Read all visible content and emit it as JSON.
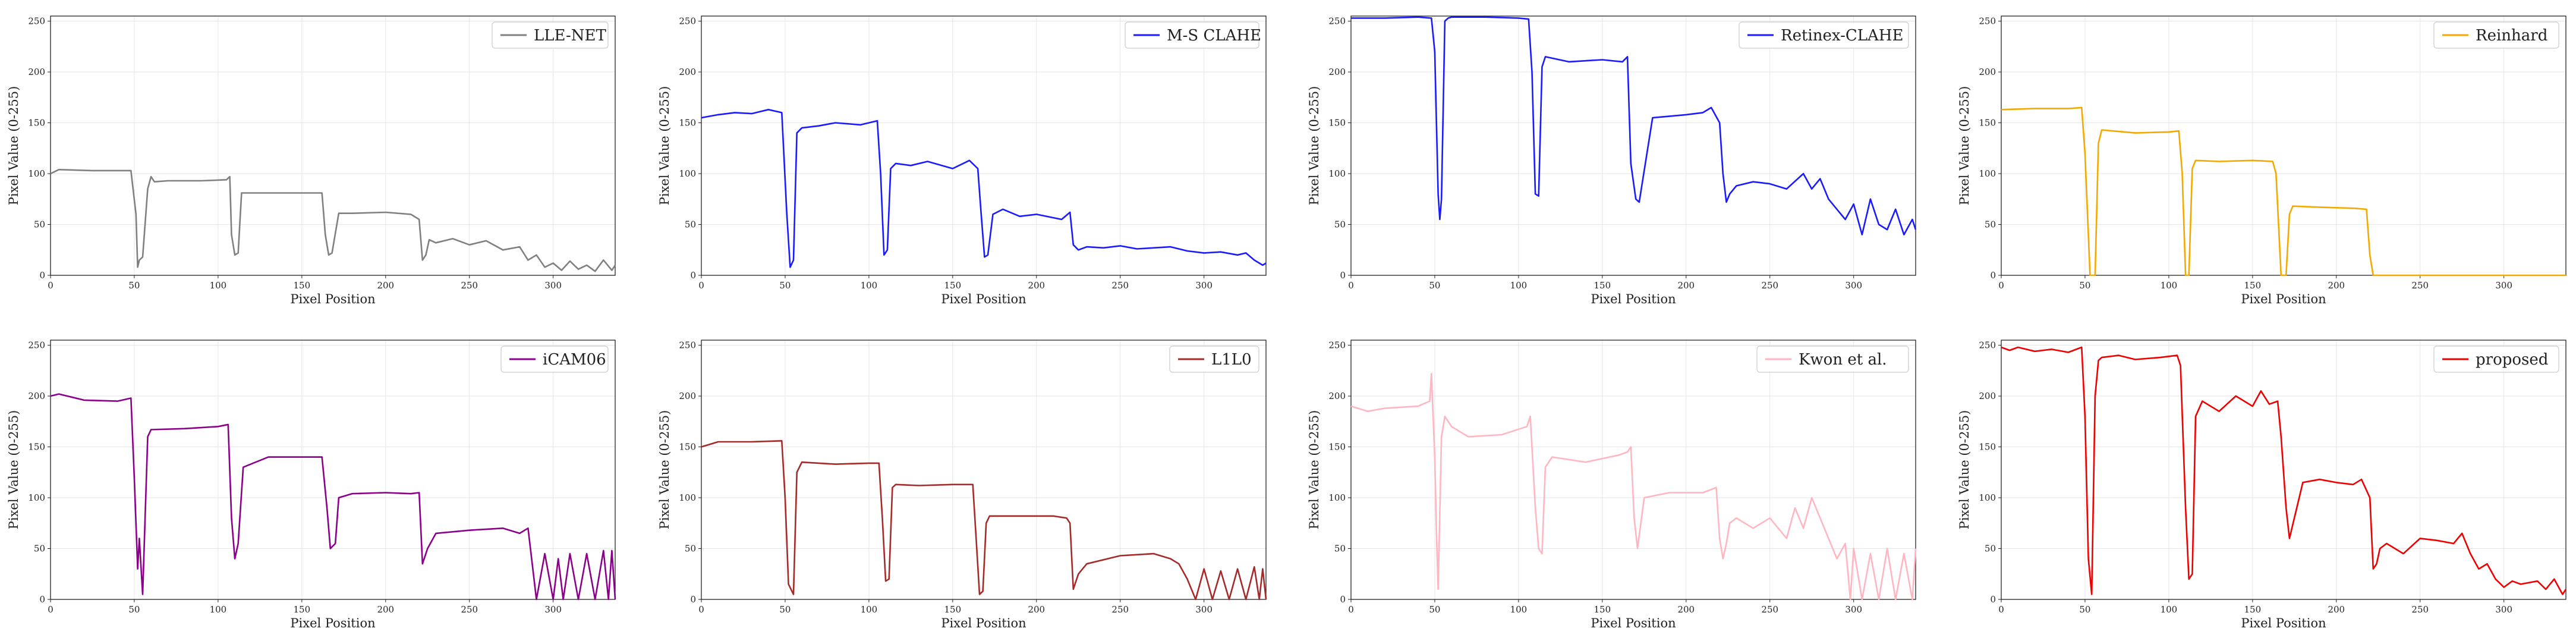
{
  "figure": {
    "xlabel": "Pixel Position",
    "ylabel": "Pixel Value (0-255)"
  },
  "chart_data": [
    {
      "type": "line",
      "title": "",
      "xlabel": "Pixel Position",
      "ylabel": "Pixel Value (0-255)",
      "xlim": [
        0,
        337
      ],
      "ylim": [
        0,
        255
      ],
      "xticks": [
        0,
        50,
        100,
        150,
        200,
        250,
        300
      ],
      "yticks": [
        0,
        50,
        100,
        150,
        200,
        250
      ],
      "grid": true,
      "legend": "top-right",
      "series": [
        {
          "name": "LLE-NET",
          "color": "#808080",
          "x": [
            0,
            5,
            25,
            48,
            51,
            52,
            53,
            55,
            58,
            60,
            62,
            70,
            90,
            105,
            107,
            108,
            110,
            112,
            114,
            120,
            140,
            160,
            162,
            164,
            166,
            168,
            172,
            180,
            200,
            215,
            220,
            222,
            224,
            226,
            230,
            240,
            250,
            260,
            270,
            280,
            285,
            290,
            295,
            300,
            305,
            310,
            315,
            320,
            325,
            330,
            335,
            337
          ],
          "y": [
            100,
            104,
            103,
            103,
            60,
            8,
            15,
            18,
            85,
            97,
            92,
            93,
            93,
            94,
            97,
            40,
            20,
            22,
            81,
            81,
            81,
            81,
            81,
            40,
            20,
            22,
            61,
            61,
            62,
            60,
            55,
            15,
            20,
            35,
            32,
            36,
            30,
            34,
            25,
            28,
            15,
            20,
            8,
            12,
            5,
            14,
            6,
            10,
            4,
            15,
            5,
            10
          ]
        }
      ]
    },
    {
      "type": "line",
      "title": "",
      "xlabel": "Pixel Position",
      "ylabel": "Pixel Value (0-255)",
      "xlim": [
        0,
        337
      ],
      "ylim": [
        0,
        255
      ],
      "xticks": [
        0,
        50,
        100,
        150,
        200,
        250,
        300
      ],
      "yticks": [
        0,
        50,
        100,
        150,
        200,
        250
      ],
      "grid": true,
      "legend": "top-right",
      "series": [
        {
          "name": "M-S CLAHE",
          "color": "#1a1aff",
          "x": [
            0,
            10,
            20,
            30,
            40,
            48,
            51,
            53,
            55,
            57,
            60,
            70,
            80,
            95,
            105,
            107,
            109,
            111,
            113,
            116,
            125,
            135,
            150,
            160,
            165,
            167,
            169,
            171,
            174,
            180,
            190,
            200,
            215,
            220,
            222,
            225,
            230,
            240,
            250,
            260,
            270,
            280,
            290,
            300,
            310,
            320,
            325,
            330,
            335,
            337
          ],
          "y": [
            155,
            158,
            160,
            159,
            163,
            160,
            60,
            8,
            15,
            140,
            145,
            147,
            150,
            148,
            152,
            100,
            20,
            25,
            105,
            110,
            108,
            112,
            105,
            113,
            105,
            60,
            18,
            20,
            60,
            65,
            58,
            60,
            55,
            62,
            30,
            25,
            28,
            27,
            29,
            26,
            27,
            28,
            24,
            22,
            23,
            20,
            22,
            15,
            10,
            12
          ]
        }
      ]
    },
    {
      "type": "line",
      "title": "",
      "xlabel": "Pixel Position",
      "ylabel": "Pixel Value (0-255)",
      "xlim": [
        0,
        337
      ],
      "ylim": [
        0,
        255
      ],
      "xticks": [
        0,
        50,
        100,
        150,
        200,
        250,
        300
      ],
      "yticks": [
        0,
        50,
        100,
        150,
        200,
        250
      ],
      "grid": true,
      "legend": "top-right",
      "series": [
        {
          "name": "Retinex-CLAHE",
          "color": "#1a1aff",
          "x": [
            0,
            20,
            40,
            48,
            50,
            52,
            53,
            54,
            56,
            58,
            60,
            80,
            100,
            106,
            108,
            110,
            112,
            114,
            116,
            130,
            150,
            162,
            165,
            167,
            170,
            172,
            180,
            200,
            210,
            215,
            220,
            222,
            224,
            226,
            230,
            240,
            250,
            260,
            270,
            275,
            280,
            285,
            290,
            295,
            300,
            305,
            310,
            315,
            320,
            325,
            330,
            335,
            337
          ],
          "y": [
            253,
            253,
            254,
            253,
            220,
            80,
            55,
            75,
            250,
            253,
            254,
            254,
            253,
            252,
            200,
            80,
            78,
            205,
            215,
            210,
            212,
            210,
            215,
            110,
            75,
            72,
            155,
            158,
            160,
            165,
            150,
            100,
            72,
            80,
            88,
            92,
            90,
            85,
            100,
            85,
            95,
            75,
            65,
            55,
            70,
            40,
            75,
            50,
            45,
            65,
            40,
            55,
            45
          ]
        }
      ]
    },
    {
      "type": "line",
      "title": "",
      "xlabel": "Pixel Position",
      "ylabel": "Pixel Value (0-255)",
      "xlim": [
        0,
        337
      ],
      "ylim": [
        0,
        255
      ],
      "xticks": [
        0,
        50,
        100,
        150,
        200,
        250,
        300
      ],
      "yticks": [
        0,
        50,
        100,
        150,
        200,
        250
      ],
      "grid": true,
      "legend": "top-right",
      "series": [
        {
          "name": "Reinhard",
          "color": "#f2a900",
          "x": [
            0,
            20,
            40,
            48,
            50,
            53,
            56,
            58,
            60,
            80,
            100,
            106,
            108,
            110,
            112,
            114,
            116,
            130,
            150,
            162,
            164,
            167,
            170,
            172,
            174,
            190,
            210,
            218,
            220,
            222,
            225,
            260,
            300,
            337
          ],
          "y": [
            163,
            164,
            164,
            165,
            120,
            0,
            0,
            130,
            143,
            140,
            141,
            142,
            100,
            0,
            0,
            105,
            113,
            112,
            113,
            112,
            100,
            0,
            0,
            60,
            68,
            67,
            66,
            65,
            20,
            0,
            0,
            0,
            0,
            0
          ]
        }
      ]
    },
    {
      "type": "line",
      "title": "",
      "xlabel": "Pixel Position",
      "ylabel": "Pixel Value (0-255)",
      "xlim": [
        0,
        337
      ],
      "ylim": [
        0,
        255
      ],
      "xticks": [
        0,
        50,
        100,
        150,
        200,
        250,
        300
      ],
      "yticks": [
        0,
        50,
        100,
        150,
        200,
        250
      ],
      "grid": true,
      "legend": "top-right",
      "series": [
        {
          "name": "iCAM06",
          "color": "#8b008b",
          "x": [
            0,
            5,
            20,
            40,
            48,
            50,
            52,
            53,
            55,
            58,
            60,
            80,
            100,
            106,
            108,
            110,
            112,
            115,
            130,
            150,
            162,
            165,
            167,
            170,
            172,
            180,
            200,
            215,
            220,
            222,
            225,
            230,
            250,
            270,
            280,
            285,
            290,
            295,
            300,
            303,
            306,
            310,
            315,
            320,
            325,
            330,
            333,
            335,
            337
          ],
          "y": [
            200,
            202,
            196,
            195,
            198,
            120,
            30,
            60,
            5,
            160,
            167,
            168,
            170,
            172,
            80,
            40,
            55,
            130,
            140,
            140,
            140,
            90,
            50,
            55,
            100,
            104,
            105,
            104,
            105,
            35,
            50,
            65,
            68,
            70,
            65,
            70,
            0,
            45,
            0,
            40,
            0,
            45,
            0,
            45,
            0,
            48,
            0,
            48,
            0
          ]
        }
      ]
    },
    {
      "type": "line",
      "title": "",
      "xlabel": "Pixel Position",
      "ylabel": "Pixel Value (0-255)",
      "xlim": [
        0,
        337
      ],
      "ylim": [
        0,
        255
      ],
      "xticks": [
        0,
        50,
        100,
        150,
        200,
        250,
        300
      ],
      "yticks": [
        0,
        50,
        100,
        150,
        200,
        250
      ],
      "grid": true,
      "legend": "top-right",
      "series": [
        {
          "name": "L1L0",
          "color": "#a52a2a",
          "x": [
            0,
            10,
            30,
            48,
            50,
            52,
            55,
            57,
            60,
            80,
            100,
            106,
            108,
            110,
            112,
            114,
            116,
            130,
            150,
            162,
            164,
            166,
            168,
            170,
            172,
            190,
            210,
            218,
            220,
            222,
            225,
            230,
            250,
            270,
            280,
            285,
            290,
            295,
            300,
            305,
            310,
            315,
            320,
            325,
            330,
            333,
            335,
            337
          ],
          "y": [
            150,
            155,
            155,
            156,
            100,
            15,
            5,
            125,
            135,
            133,
            134,
            134,
            80,
            18,
            20,
            110,
            113,
            112,
            113,
            113,
            60,
            5,
            8,
            75,
            82,
            82,
            82,
            80,
            75,
            10,
            25,
            35,
            43,
            45,
            40,
            35,
            20,
            0,
            30,
            0,
            28,
            0,
            30,
            0,
            32,
            0,
            30,
            0
          ]
        }
      ]
    },
    {
      "type": "line",
      "title": "",
      "xlabel": "Pixel Position",
      "ylabel": "Pixel Value (0-255)",
      "xlim": [
        0,
        337
      ],
      "ylim": [
        0,
        255
      ],
      "xticks": [
        0,
        50,
        100,
        150,
        200,
        250,
        300
      ],
      "yticks": [
        0,
        50,
        100,
        150,
        200,
        250
      ],
      "grid": true,
      "legend": "top-right",
      "series": [
        {
          "name": "Kwon et al.",
          "color": "#ffb6c1",
          "x": [
            0,
            10,
            20,
            40,
            47,
            48,
            50,
            51,
            52,
            54,
            56,
            60,
            70,
            90,
            105,
            107,
            110,
            112,
            114,
            116,
            120,
            140,
            160,
            165,
            167,
            169,
            171,
            175,
            190,
            210,
            218,
            220,
            222,
            224,
            226,
            230,
            240,
            250,
            260,
            265,
            270,
            275,
            280,
            285,
            290,
            295,
            298,
            300,
            305,
            310,
            315,
            320,
            325,
            330,
            335,
            337
          ],
          "y": [
            190,
            185,
            188,
            190,
            195,
            222,
            140,
            65,
            10,
            160,
            180,
            170,
            160,
            162,
            170,
            180,
            90,
            50,
            45,
            130,
            140,
            135,
            142,
            145,
            150,
            80,
            50,
            100,
            105,
            105,
            110,
            60,
            40,
            55,
            75,
            80,
            70,
            80,
            60,
            90,
            70,
            100,
            80,
            60,
            40,
            55,
            0,
            50,
            0,
            45,
            0,
            50,
            0,
            45,
            0,
            50
          ]
        }
      ]
    },
    {
      "type": "line",
      "title": "",
      "xlabel": "Pixel Position",
      "ylabel": "Pixel Value (0-255)",
      "xlim": [
        0,
        337
      ],
      "ylim": [
        0,
        255
      ],
      "xticks": [
        0,
        50,
        100,
        150,
        200,
        250,
        300
      ],
      "yticks": [
        0,
        50,
        100,
        150,
        200,
        250
      ],
      "grid": true,
      "legend": "top-right",
      "series": [
        {
          "name": "proposed",
          "color": "#ee0000",
          "x": [
            0,
            5,
            10,
            20,
            30,
            40,
            48,
            50,
            52,
            54,
            56,
            58,
            60,
            70,
            80,
            95,
            105,
            107,
            110,
            112,
            114,
            116,
            120,
            130,
            140,
            150,
            155,
            160,
            165,
            167,
            170,
            172,
            180,
            190,
            200,
            210,
            215,
            220,
            222,
            224,
            226,
            230,
            240,
            250,
            260,
            270,
            275,
            280,
            285,
            290,
            295,
            300,
            305,
            310,
            320,
            325,
            330,
            335,
            337
          ],
          "y": [
            248,
            245,
            248,
            244,
            246,
            243,
            248,
            180,
            40,
            5,
            200,
            235,
            238,
            240,
            236,
            238,
            240,
            230,
            90,
            20,
            25,
            180,
            195,
            185,
            200,
            190,
            205,
            192,
            195,
            160,
            90,
            60,
            115,
            118,
            115,
            113,
            118,
            100,
            30,
            35,
            50,
            55,
            45,
            60,
            58,
            55,
            65,
            45,
            30,
            35,
            20,
            12,
            18,
            15,
            18,
            10,
            20,
            5,
            10
          ]
        }
      ]
    }
  ]
}
